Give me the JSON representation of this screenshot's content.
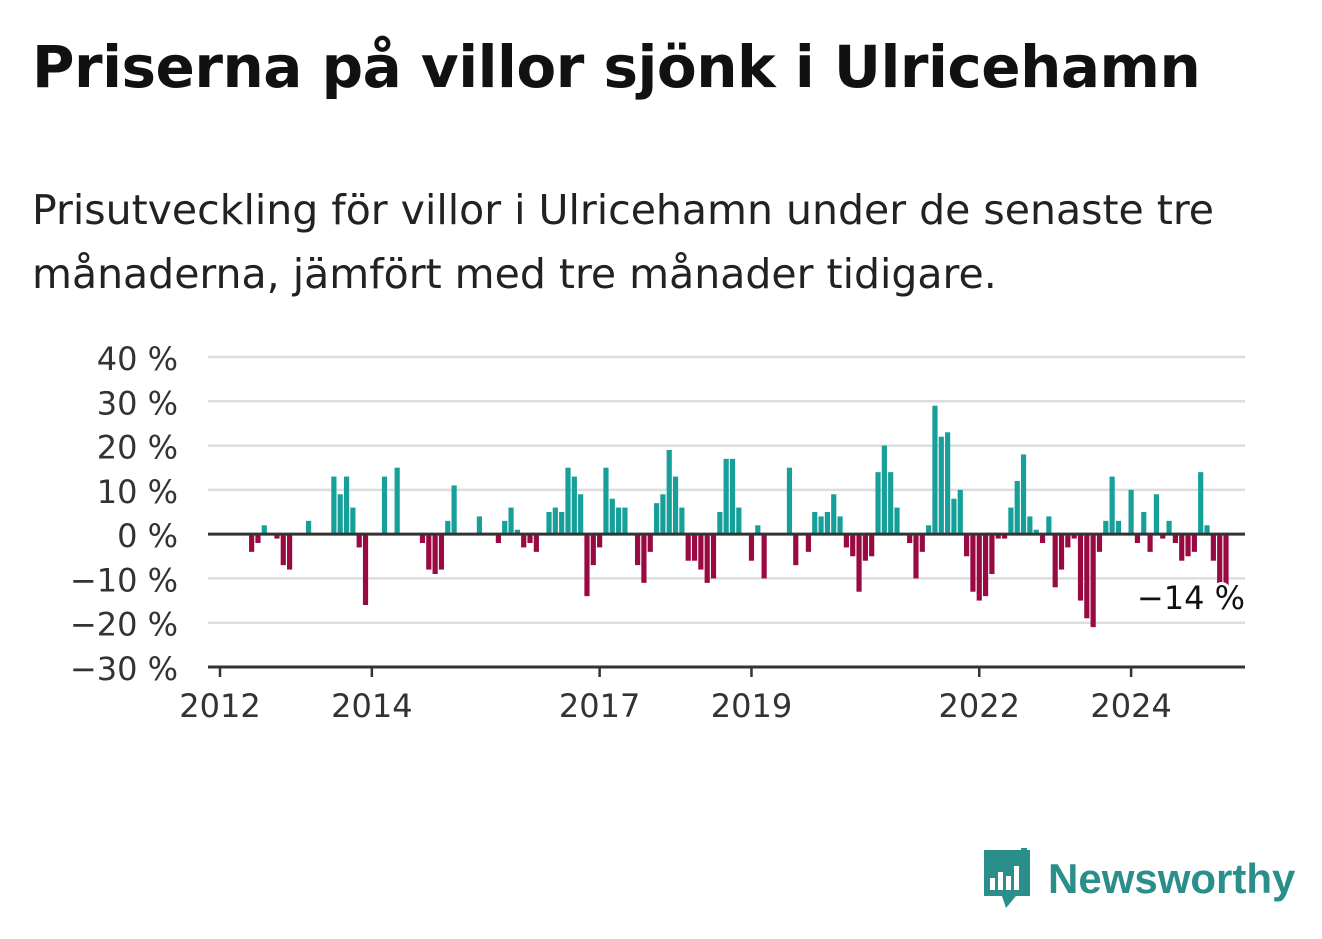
{
  "header": {
    "title": "Priserna på villor sjönk i Ulricehamn",
    "subtitle": "Prisutveckling för villor i Ulricehamn under de senaste tre månaderna, jämfört med tre månader tidigare."
  },
  "brand": {
    "name": "Newsworthy",
    "icon": "newsworthy-logo-icon",
    "color": "#2a8f8a"
  },
  "colors": {
    "positive": "#17a09a",
    "negative": "#9a0a42",
    "grid": "#dddddd",
    "axis": "#333333"
  },
  "chart_data": {
    "type": "bar",
    "title": "Priserna på villor sjönk i Ulricehamn",
    "subtitle": "Prisutveckling för villor i Ulricehamn under de senaste tre månaderna, jämfört med tre månader tidigare.",
    "unit": "%",
    "ylim": [
      -30,
      40
    ],
    "yticks": [
      40,
      30,
      20,
      10,
      0,
      -10,
      -20,
      -30
    ],
    "ytick_labels": [
      "40 %",
      "30 %",
      "20 %",
      "10 %",
      "0 %",
      "−10 %",
      "−20 %",
      "−30 %"
    ],
    "xlim": [
      "2012-01",
      "2025-07"
    ],
    "xticks": [
      {
        "date": "2012-01",
        "label": "2012"
      },
      {
        "date": "2014-01",
        "label": "2014"
      },
      {
        "date": "2017-01",
        "label": "2017"
      },
      {
        "date": "2019-01",
        "label": "2019"
      },
      {
        "date": "2022-01",
        "label": "2022"
      },
      {
        "date": "2024-01",
        "label": "2024"
      }
    ],
    "grid": true,
    "last_value_label": "−14 %",
    "series": [
      {
        "start": "2012-06",
        "values": [
          -4,
          -2,
          2,
          0,
          -1,
          -7,
          -8,
          0,
          0,
          3,
          0,
          0,
          0,
          13,
          9,
          13,
          6,
          -3,
          -16,
          0,
          0,
          13,
          0,
          15,
          0,
          0,
          0,
          -2,
          -8,
          -9,
          -8,
          3,
          11,
          0,
          0,
          0,
          4,
          0,
          0,
          -2,
          3,
          6,
          1,
          -3,
          -2,
          -4,
          0,
          5,
          6,
          5,
          15,
          13,
          9,
          -14,
          -7,
          -3,
          15,
          8,
          6,
          6,
          0,
          -7,
          -11,
          -4,
          7,
          9,
          19,
          13,
          6,
          -6,
          -6,
          -8,
          -11,
          -10,
          5,
          17,
          17,
          6,
          0,
          -6,
          2,
          -10,
          0,
          0,
          0,
          15,
          -7,
          0,
          -4,
          5,
          4,
          5,
          9,
          4,
          -3,
          -5,
          -13,
          -6,
          -5,
          14,
          20,
          14,
          6,
          0,
          -2,
          -10,
          -4,
          2,
          29,
          22,
          23,
          8,
          10,
          -5,
          -13,
          -15,
          -14,
          -9,
          -1,
          -1,
          6,
          12,
          18,
          4,
          1,
          -2,
          4,
          -12,
          -8,
          -3,
          -1,
          -15,
          -19,
          -21,
          -4,
          3,
          13,
          3,
          0,
          10,
          -2,
          5,
          -4,
          9,
          -1,
          3,
          -2,
          -6,
          -5,
          -4,
          14,
          2,
          -6,
          -14,
          -14
        ]
      }
    ]
  }
}
